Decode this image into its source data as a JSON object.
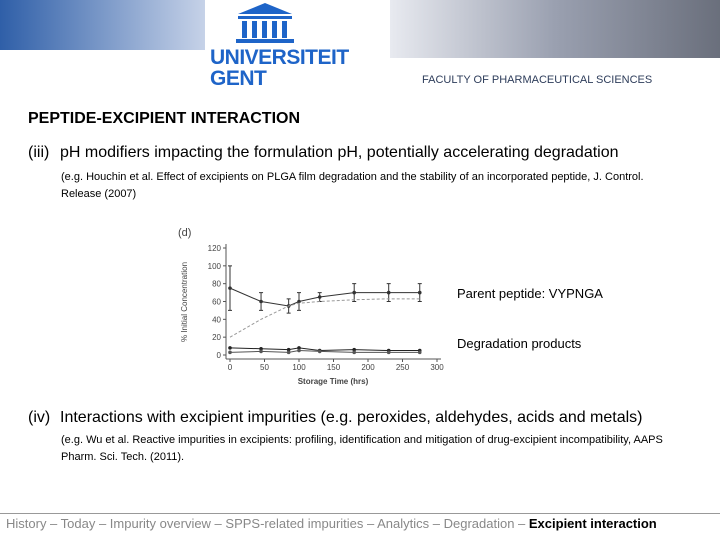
{
  "header": {
    "logo_line1": "UNIVERSITEIT",
    "logo_line2": "GENT",
    "faculty": "FACULTY OF PHARMACEUTICAL SCIENCES"
  },
  "title": "PEPTIDE-EXCIPIENT INTERACTION",
  "items": [
    {
      "label": "(iii)",
      "text": "pH modifiers impacting the formulation pH, potentially accelerating degradation",
      "reference": "(e.g. Houchin et al. Effect of excipients on PLGA film degradation and the stability of an incorporated peptide, J. Control. Release (2007)"
    },
    {
      "label": "(iv)",
      "text": "Interactions with excipient impurities (e.g. peroxides, aldehydes, acids and metals)",
      "reference": "(e.g. Wu et al. Reactive impurities in excipients: profiling, identification and mitigation of drug-excipient incompatibility, AAPS Pharm. Sci. Tech. (2011)."
    }
  ],
  "chart_data": {
    "type": "line",
    "panel": "(d)",
    "y_label": "% Initial Concentration",
    "x_label": "Storage Time (hrs)",
    "x": [
      0,
      45,
      85,
      100,
      130,
      180,
      230,
      275
    ],
    "series": [
      {
        "color": "#333333",
        "values": [
          75,
          60,
          55,
          60,
          65,
          70,
          70,
          70
        ],
        "errors": [
          25,
          10,
          8,
          10,
          5,
          10,
          10,
          10
        ]
      },
      {
        "color": "#999999",
        "dashed": true,
        "values": [
          20,
          40,
          55,
          58,
          60,
          62,
          63,
          63
        ]
      },
      {
        "color": "#222222",
        "values": [
          8,
          7,
          6,
          8,
          5,
          6,
          5,
          5
        ]
      },
      {
        "color": "#555555",
        "values": [
          3,
          4,
          3,
          5,
          4,
          3,
          3,
          3
        ]
      }
    ],
    "xlim": [
      0,
      300
    ],
    "ylim": [
      0,
      120
    ],
    "xticks": [
      0,
      50,
      100,
      150,
      200,
      250,
      300
    ],
    "yticks": [
      0,
      20,
      40,
      60,
      80,
      100,
      120
    ],
    "annotations": [
      "Parent peptide: VYPNGA",
      "Degradation products"
    ]
  },
  "footer": {
    "trail": "History – Today – Impurity overview – SPPS-related impurities – Analytics – Degradation – ",
    "current": "Excipient interaction"
  }
}
